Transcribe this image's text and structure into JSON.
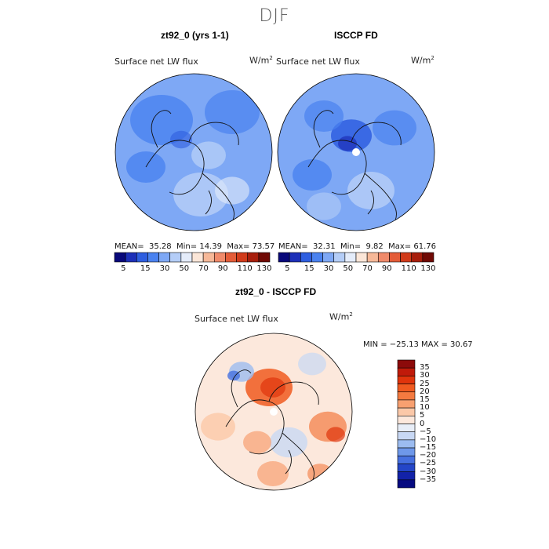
{
  "season": "DJF",
  "panels": [
    {
      "title": "zt92_0 (yrs 1-1)",
      "variable": "Surface net LW flux",
      "units": "W/m",
      "units_exp": "2",
      "stats": {
        "mean_label": "MEAN=",
        "mean": "35.28",
        "min_label": "Min=",
        "min": "14.39",
        "max_label": "Max=",
        "max": "73.57"
      }
    },
    {
      "title": "ISCCP FD",
      "variable": "Surface net LW flux",
      "units": "W/m",
      "units_exp": "2",
      "stats": {
        "mean_label": "MEAN=",
        "mean": "32.31",
        "min_label": "Min=",
        "min": "9.82",
        "max_label": "Max=",
        "max": "61.76"
      }
    }
  ],
  "abs_colorbar": {
    "colors": [
      "#08087a",
      "#1c2fb8",
      "#2e5ee0",
      "#4a82f0",
      "#7ea8f5",
      "#b4cdf7",
      "#e4ecfa",
      "#fbe6d8",
      "#f6b898",
      "#f08a6a",
      "#e45c38",
      "#d13b1a",
      "#a81e0c",
      "#700a05"
    ],
    "tick_labels": [
      "5",
      "15",
      "30",
      "50",
      "70",
      "90",
      "110",
      "130"
    ]
  },
  "diff_panel": {
    "title": "zt92_0 - ISCCP FD",
    "variable": "Surface net LW flux",
    "units": "W/m",
    "units_exp": "2",
    "stats_line": "MIN = −25.13 MAX =  30.67"
  },
  "diff_colorbar": {
    "colors": [
      "#8c0a0a",
      "#c01a0a",
      "#e0340c",
      "#f05a20",
      "#f47a40",
      "#f8a070",
      "#fbc8a8",
      "#fce8dc",
      "#e8eef8",
      "#c8d8f4",
      "#9cbcf0",
      "#6e98ea",
      "#4670e0",
      "#2446c8",
      "#1222a8",
      "#060a80"
    ],
    "tick_labels": [
      "35",
      "30",
      "25",
      "20",
      "15",
      "10",
      "5",
      "0",
      "−5",
      "−10",
      "−15",
      "−20",
      "−25",
      "−30",
      "−35"
    ]
  },
  "colors": {
    "land_outline": "#111111",
    "pole_hole": "#ffffff"
  }
}
